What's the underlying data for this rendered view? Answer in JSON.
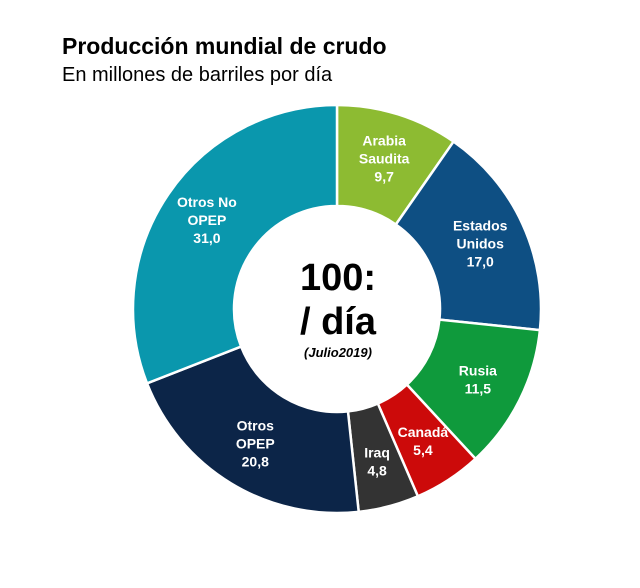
{
  "title": "Producción mundial de crudo",
  "subtitle": "En millones de barriles por día",
  "center": {
    "line1": "100:",
    "line2": "/ día",
    "note": "(Julio2019)"
  },
  "chart_data": {
    "type": "pie",
    "title": "Producción mundial de crudo",
    "subtitle": "En millones de barriles por día",
    "slices": [
      {
        "label": [
          "Arabia",
          "Saudita"
        ],
        "value": 9.7,
        "display": "9,7",
        "color": "#8dbb32"
      },
      {
        "label": [
          "Estados",
          "Unidos"
        ],
        "value": 17.0,
        "display": "17,0",
        "color": "#0e4f83"
      },
      {
        "label": [
          "Rusia"
        ],
        "value": 11.5,
        "display": "11,5",
        "color": "#0f9a3c"
      },
      {
        "label": [
          "Canadá"
        ],
        "value": 5.4,
        "display": "5,4",
        "color": "#cc0a0a"
      },
      {
        "label": [
          "Iraq"
        ],
        "value": 4.8,
        "display": "4,8",
        "color": "#333333"
      },
      {
        "label": [
          "Otros",
          "OPEP"
        ],
        "value": 20.8,
        "display": "20,8",
        "color": "#0c2548"
      },
      {
        "label": [
          "Otros No",
          "OPEP"
        ],
        "value": 31.0,
        "display": "31,0",
        "color": "#0a97ad"
      }
    ]
  }
}
